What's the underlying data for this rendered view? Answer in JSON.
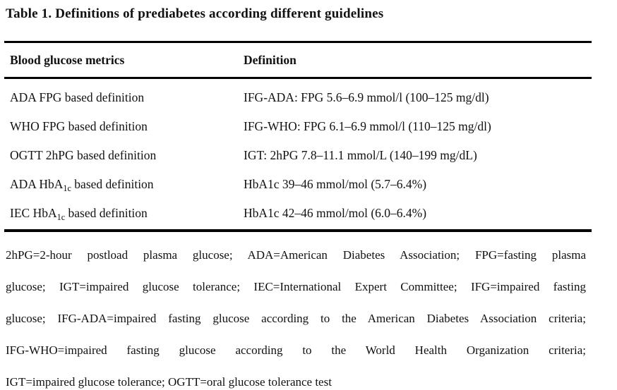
{
  "page": {
    "title": "Table 1. Definitions of prediabetes according different guidelines"
  },
  "colors": {
    "background": "#ffffff",
    "text": "#111111",
    "rule": "#000000"
  },
  "table": {
    "headers": {
      "metric": "Blood glucose metrics",
      "definition": "Definition"
    },
    "rows": [
      {
        "metric": {
          "pre": "ADA FPG based definition",
          "sub": "",
          "post": ""
        },
        "definition": "IFG-ADA: FPG 5.6–6.9 mmol/l (100–125 mg/dl)"
      },
      {
        "metric": {
          "pre": "WHO FPG based definition",
          "sub": "",
          "post": ""
        },
        "definition": "IFG-WHO: FPG 6.1–6.9 mmol/l (110–125 mg/dl)"
      },
      {
        "metric": {
          "pre": "OGTT 2hPG based definition",
          "sub": "",
          "post": ""
        },
        "definition": "IGT: 2hPG 7.8–11.1 mmol/L (140–199 mg/dL)"
      },
      {
        "metric": {
          "pre": "ADA HbA",
          "sub": "1c",
          "post": " based definition"
        },
        "definition": "HbA1c 39–46 mmol/mol (5.7–6.4%)"
      },
      {
        "metric": {
          "pre": "IEC HbA",
          "sub": "1c",
          "post": " based definition"
        },
        "definition": "HbA1c 42–46 mmol/mol (6.0–6.4%)"
      }
    ]
  },
  "footnote": {
    "lines": [
      "2hPG=2-hour postload plasma glucose; ADA=American Diabetes Association; FPG=fasting plasma",
      "glucose; IGT=impaired glucose tolerance; IEC=International Expert Committee; IFG=impaired fasting",
      "glucose; IFG-ADA=impaired fasting glucose according to the American Diabetes Association criteria;",
      "IFG-WHO=impaired fasting glucose according to the World Health Organization criteria;",
      "IGT=impaired glucose tolerance; OGTT=oral glucose tolerance test"
    ]
  }
}
